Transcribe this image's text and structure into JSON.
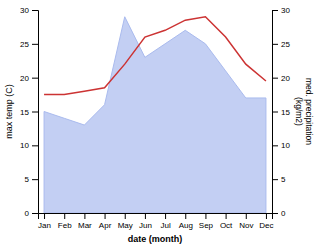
{
  "chart_data": {
    "type": "line",
    "categories": [
      "Jan",
      "Feb",
      "Mar",
      "Apr",
      "May",
      "Jun",
      "Jul",
      "Aug",
      "Sep",
      "Oct",
      "Nov",
      "Dec"
    ],
    "xlabel": "date (month)",
    "ylabel": "max temp (C)",
    "y2label": "med. precipitation\n(kg/m2)",
    "ylim": [
      0,
      30
    ],
    "yticks": [
      0,
      5,
      10,
      15,
      20,
      25,
      30
    ],
    "y2lim": [
      0,
      30
    ],
    "y2ticks": [
      0,
      5,
      10,
      15,
      20,
      25,
      30
    ],
    "series": [
      {
        "type": "area",
        "axis": "y2",
        "color": "#aabbee",
        "values": [
          15,
          14,
          13,
          16,
          29,
          23,
          25,
          27,
          25,
          21,
          17,
          17
        ]
      },
      {
        "type": "line",
        "color": "#cc3333",
        "values": [
          17.5,
          17.5,
          18,
          18.5,
          22,
          26,
          27,
          28.5,
          29,
          26,
          22,
          19.5
        ]
      }
    ]
  }
}
